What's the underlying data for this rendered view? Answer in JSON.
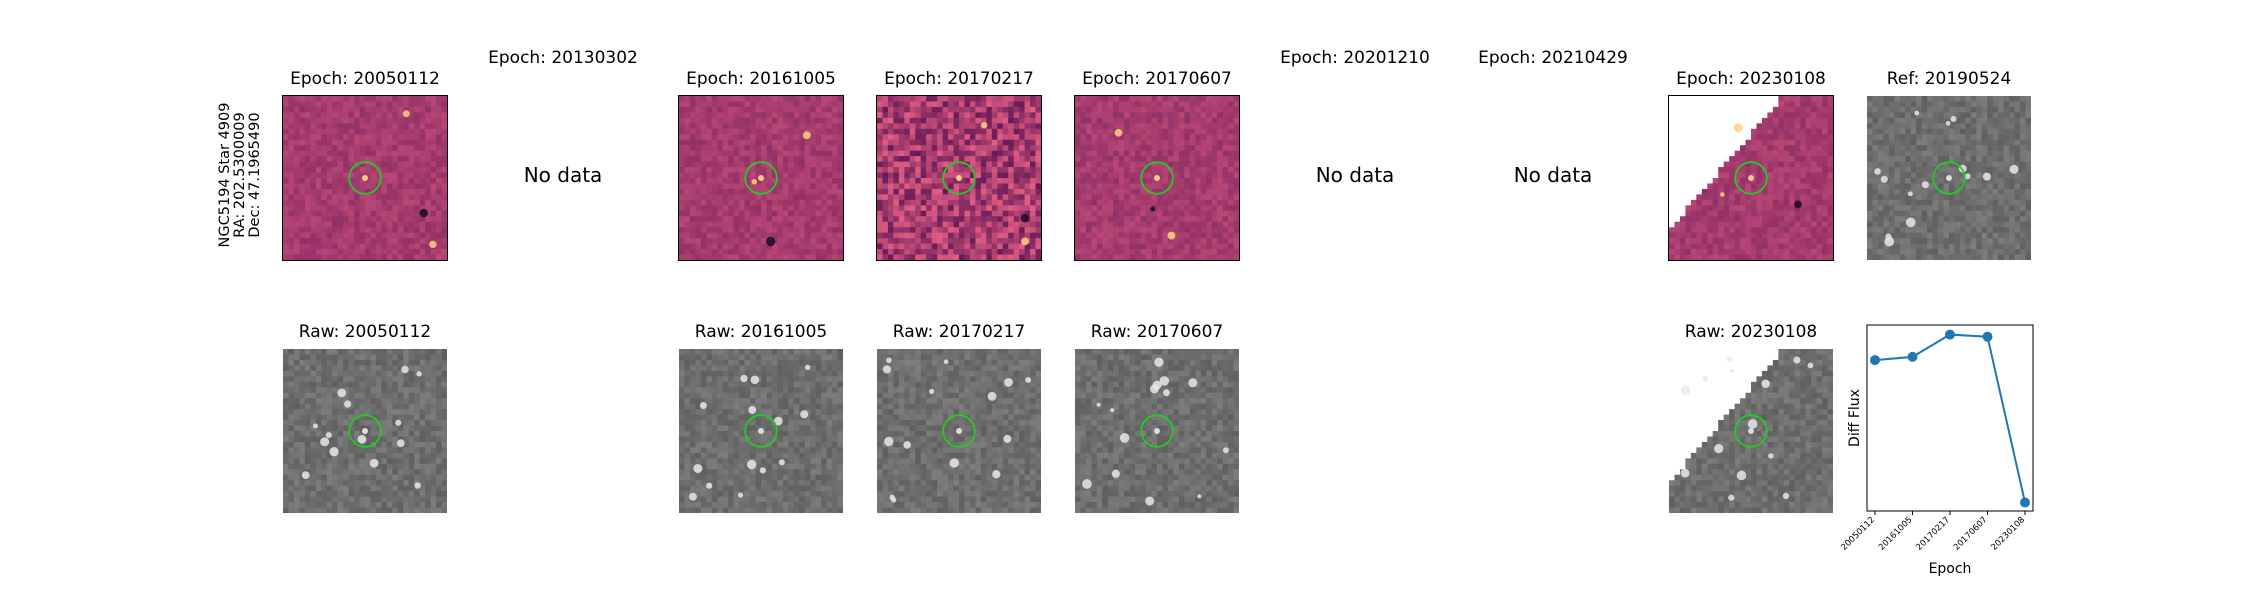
{
  "row_label": {
    "line1": "NGC5194 Star 4909",
    "line2": "RA: 202.5300009",
    "line3": "Dec: 47.1965490"
  },
  "top_row": [
    {
      "title": "Epoch: 20050112",
      "has_data": true,
      "style": "diff"
    },
    {
      "title": "Epoch: 20130302",
      "has_data": false,
      "nodata_text": "No data"
    },
    {
      "title": "Epoch: 20161005",
      "has_data": true,
      "style": "diff"
    },
    {
      "title": "Epoch: 20170217",
      "has_data": true,
      "style": "diff-noisy"
    },
    {
      "title": "Epoch: 20170607",
      "has_data": true,
      "style": "diff"
    },
    {
      "title": "Epoch: 20201210",
      "has_data": false,
      "nodata_text": "No data"
    },
    {
      "title": "Epoch: 20210429",
      "has_data": false,
      "nodata_text": "No data"
    },
    {
      "title": "Epoch: 20230108",
      "has_data": true,
      "style": "diff-edge"
    },
    {
      "title": "Ref: 20190524",
      "has_data": true,
      "style": "gray"
    }
  ],
  "bottom_row": [
    {
      "title": "Raw: 20050112",
      "style": "gray"
    },
    {
      "title": "Raw: 20161005",
      "style": "gray"
    },
    {
      "title": "Raw: 20170217",
      "style": "gray"
    },
    {
      "title": "Raw: 20170607",
      "style": "gray"
    },
    {
      "title": "Raw: 20230108",
      "style": "gray-edge"
    }
  ],
  "colors": {
    "diff_base": "#b8457a",
    "gray_base": "#7a7a7a",
    "circle": "#22cc22",
    "line": "#1f77b4"
  },
  "chart_data": {
    "type": "line",
    "categories": [
      "20050112",
      "20161005",
      "20170217",
      "20170607",
      "20230108"
    ],
    "values": [
      0.72,
      0.75,
      0.96,
      0.94,
      -0.62
    ],
    "xlabel": "Epoch",
    "ylabel": "Diff Flux",
    "ylim": [
      -0.7,
      1.05
    ],
    "grid": false,
    "marker": "circle"
  }
}
